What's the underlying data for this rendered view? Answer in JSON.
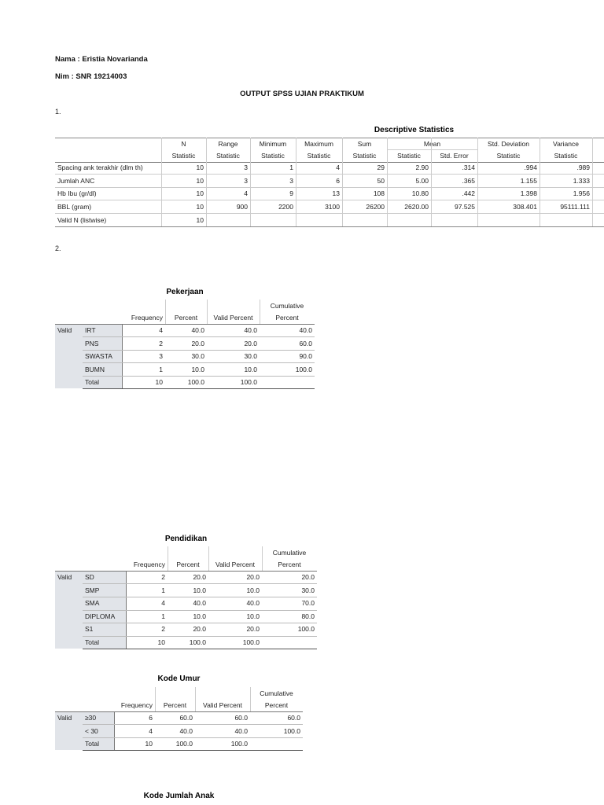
{
  "header": {
    "name": "Nama : Eristia Novarianda",
    "nim": "Nim : SNR 19214003",
    "title": "OUTPUT SPSS UJIAN PRAKTIKUM"
  },
  "sections": [
    "1.",
    "2."
  ],
  "descriptive": {
    "title": "Descriptive Statistics",
    "header_top": [
      "N",
      "Range",
      "Minimum",
      "Maximum",
      "Sum",
      "Mean",
      "Std. Deviation",
      "Variance"
    ],
    "header_sub": [
      "Statistic",
      "Statistic",
      "Statistic",
      "Statistic",
      "Statistic",
      "Statistic",
      "Std. Error",
      "Statistic",
      "Statistic"
    ],
    "rows": [
      {
        "label": "Spacing ank terakhir (dlm th)",
        "values": [
          "10",
          "3",
          "1",
          "4",
          "29",
          "2.90",
          ".314",
          ".994",
          ".989"
        ]
      },
      {
        "label": "Jumlah ANC",
        "values": [
          "10",
          "3",
          "3",
          "6",
          "50",
          "5.00",
          ".365",
          "1.155",
          "1.333"
        ]
      },
      {
        "label": "Hb Ibu (gr/dl)",
        "values": [
          "10",
          "4",
          "9",
          "13",
          "108",
          "10.80",
          ".442",
          "1.398",
          "1.956"
        ]
      },
      {
        "label": "BBL (gram)",
        "values": [
          "10",
          "900",
          "2200",
          "3100",
          "26200",
          "2620.00",
          "97.525",
          "308.401",
          "95111.111"
        ]
      },
      {
        "label": "Valid N (listwise)",
        "values": [
          "10"
        ]
      }
    ]
  },
  "frequency_tables": [
    {
      "title": "Pekerjaan",
      "header": {
        "frequency": "Frequency",
        "percent": "Percent",
        "valid_percent": "Valid Percent",
        "cumulative": [
          "Cumulative",
          "Percent"
        ]
      },
      "group": "Valid",
      "rows": [
        {
          "label": "IRT",
          "values": [
            "4",
            "40.0",
            "40.0",
            "40.0"
          ]
        },
        {
          "label": "PNS",
          "values": [
            "2",
            "20.0",
            "20.0",
            "60.0"
          ]
        },
        {
          "label": "SWASTA",
          "values": [
            "3",
            "30.0",
            "30.0",
            "90.0"
          ]
        },
        {
          "label": "BUMN",
          "values": [
            "1",
            "10.0",
            "10.0",
            "100.0"
          ]
        },
        {
          "label": "Total",
          "values": [
            "10",
            "100.0",
            "100.0"
          ]
        }
      ]
    },
    {
      "title": "Pendidikan",
      "header": {
        "frequency": "Frequency",
        "percent": "Percent",
        "valid_percent": "Valid Percent",
        "cumulative": [
          "Cumulative",
          "Percent"
        ]
      },
      "group": "Valid",
      "rows": [
        {
          "label": "SD",
          "values": [
            "2",
            "20.0",
            "20.0",
            "20.0"
          ]
        },
        {
          "label": "SMP",
          "values": [
            "1",
            "10.0",
            "10.0",
            "30.0"
          ]
        },
        {
          "label": "SMA",
          "values": [
            "4",
            "40.0",
            "40.0",
            "70.0"
          ]
        },
        {
          "label": "DIPLOMA",
          "values": [
            "1",
            "10.0",
            "10.0",
            "80.0"
          ]
        },
        {
          "label": "S1",
          "values": [
            "2",
            "20.0",
            "20.0",
            "100.0"
          ]
        },
        {
          "label": "Total",
          "values": [
            "10",
            "100.0",
            "100.0"
          ]
        }
      ]
    },
    {
      "title": "Kode Umur",
      "header": {
        "frequency": "Frequency",
        "percent": "Percent",
        "valid_percent": "Valid Percent",
        "cumulative": [
          "Cumulative",
          "Percent"
        ]
      },
      "group": "Valid",
      "rows": [
        {
          "label": "≥30",
          "values": [
            "6",
            "60.0",
            "60.0",
            "60.0"
          ]
        },
        {
          "label": "< 30",
          "values": [
            "4",
            "40.0",
            "40.0",
            "100.0"
          ]
        },
        {
          "label": "Total",
          "values": [
            "10",
            "100.0",
            "100.0"
          ]
        }
      ]
    },
    {
      "title": "Kode Jumlah Anak"
    }
  ]
}
